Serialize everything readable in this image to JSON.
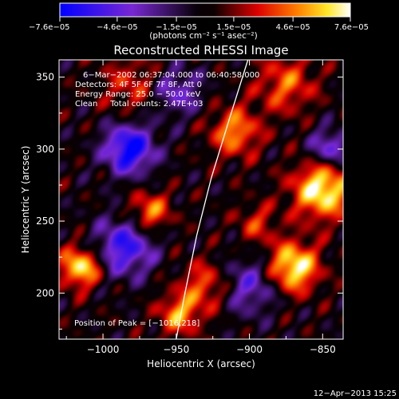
{
  "chart_data": {
    "type": "heatmap",
    "title": "Reconstructed RHESSI Image",
    "xlabel": "Heliocentric X (arcsec)",
    "ylabel": "Heliocentric Y (arcsec)",
    "xlim": [
      -1030,
      -836
    ],
    "ylim": [
      168,
      362
    ],
    "xticks": [
      -1000,
      -950,
      -900,
      -850
    ],
    "xtick_labels": [
      "−1000",
      "−950",
      "−900",
      "−850"
    ],
    "yticks": [
      200,
      250,
      300,
      350
    ],
    "ytick_labels": [
      "200",
      "250",
      "300",
      "350"
    ],
    "colorbar": {
      "range": [
        -7.6e-05,
        7.6e-05
      ],
      "tick_values": [
        -7.6e-05,
        -4.6e-05,
        -1.5e-05,
        1.5e-05,
        4.6e-05,
        7.6e-05
      ],
      "tick_labels": [
        "−7.6e−05",
        "−4.6e−05",
        "−1.5e−05",
        "1.5e−05",
        "4.6e−05",
        "7.6e−05"
      ],
      "units": "(photons cm⁻² s⁻¹ asec⁻²)"
    },
    "annotations": [
      "6−Mar−2002 06:37:04.000 to 06:40:58.000",
      "Detectors: 4F 5F 6F 7F 8F, Att 0",
      "Energy Range: 25.0 − 50.0 keV",
      "Clean     Total counts: 2.47E+03"
    ],
    "peak_label": "Position of Peak = [−1016,218]",
    "peak_position": [
      -1016,
      218
    ],
    "limb": [
      [
        -950,
        168
      ],
      [
        -944,
        200
      ],
      [
        -936,
        240
      ],
      [
        -926,
        280
      ],
      [
        -914,
        320
      ],
      [
        -901,
        362
      ]
    ],
    "peaks": [
      {
        "x": -1015,
        "y": 218,
        "value": 7e-05
      },
      {
        "x": -870,
        "y": 218,
        "value": 7.6e-05
      },
      {
        "x": -850,
        "y": 272,
        "value": 7.6e-05
      },
      {
        "x": -968,
        "y": 256,
        "value": 5e-05
      },
      {
        "x": -910,
        "y": 312,
        "value": 5e-05
      },
      {
        "x": -875,
        "y": 345,
        "value": 4e-05
      },
      {
        "x": -948,
        "y": 185,
        "value": 5e-05
      },
      {
        "x": -930,
        "y": 205,
        "value": 4e-05
      },
      {
        "x": -980,
        "y": 345,
        "value": 3e-05
      },
      {
        "x": -895,
        "y": 248,
        "value": 3e-05
      }
    ],
    "troughs": [
      {
        "x": -982,
        "y": 300,
        "value": -7.6e-05
      },
      {
        "x": -985,
        "y": 232,
        "value": -6e-05
      },
      {
        "x": -845,
        "y": 300,
        "value": -5e-05
      },
      {
        "x": -950,
        "y": 340,
        "value": -4e-05
      },
      {
        "x": -900,
        "y": 205,
        "value": -4e-05
      }
    ]
  },
  "footer": {
    "timestamp": "12−Apr−2013 15:25"
  }
}
